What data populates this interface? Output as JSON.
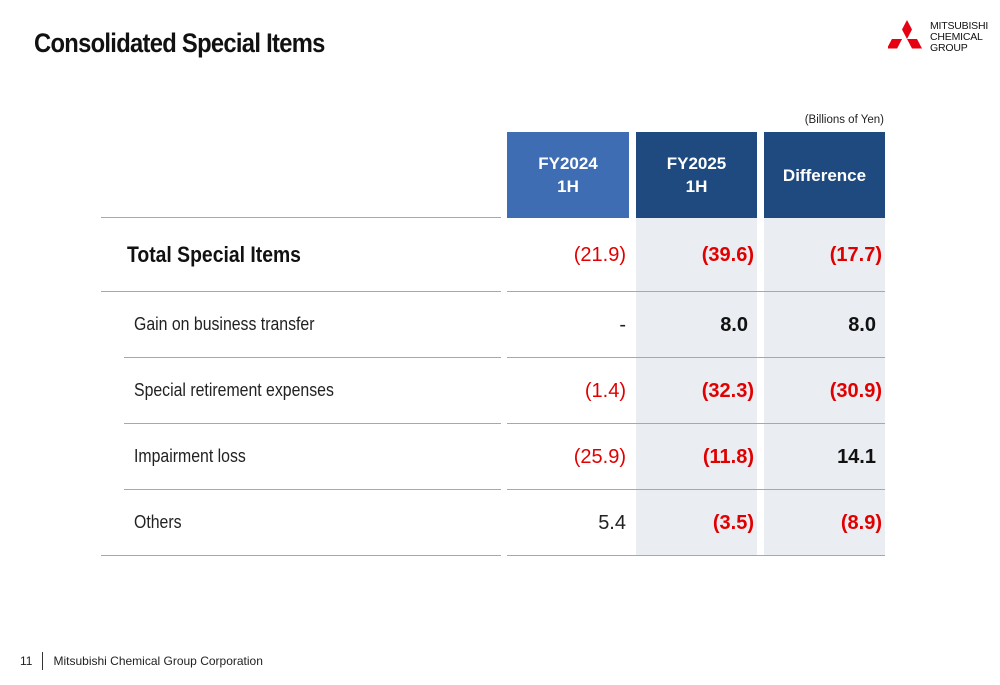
{
  "header": {
    "title": "Consolidated Special Items",
    "logo_lines": [
      "MITSUBISHI",
      "CHEMICAL",
      "GROUP"
    ],
    "logo_color": "#e60012"
  },
  "table": {
    "unit": "(Billions of Yen)",
    "columns": [
      {
        "line1": "FY2024",
        "line2": "1H"
      },
      {
        "line1": "FY2025",
        "line2": "1H"
      },
      {
        "line1": "Difference",
        "line2": ""
      }
    ],
    "rows": [
      {
        "label": "Total Special Items",
        "values": [
          "(21.9)",
          "(39.6)",
          "(17.7)"
        ]
      },
      {
        "label": "Gain on business transfer",
        "values": [
          "-",
          "8.0",
          "8.0"
        ]
      },
      {
        "label": "Special retirement expenses",
        "values": [
          "(1.4)",
          "(32.3)",
          "(30.9)"
        ]
      },
      {
        "label": "Impairment loss",
        "values": [
          "(25.9)",
          "(11.8)",
          "14.1"
        ]
      },
      {
        "label": "Others",
        "values": [
          "5.4",
          "(3.5)",
          "(8.9)"
        ]
      }
    ]
  },
  "colors": {
    "fy2024_header": "#3f6db3",
    "fy2025_header": "#1e4a80",
    "negative_text": "#e00000",
    "shade": "#eaedf1"
  },
  "footer": {
    "page_number": "11",
    "company": "Mitsubishi Chemical Group Corporation"
  }
}
